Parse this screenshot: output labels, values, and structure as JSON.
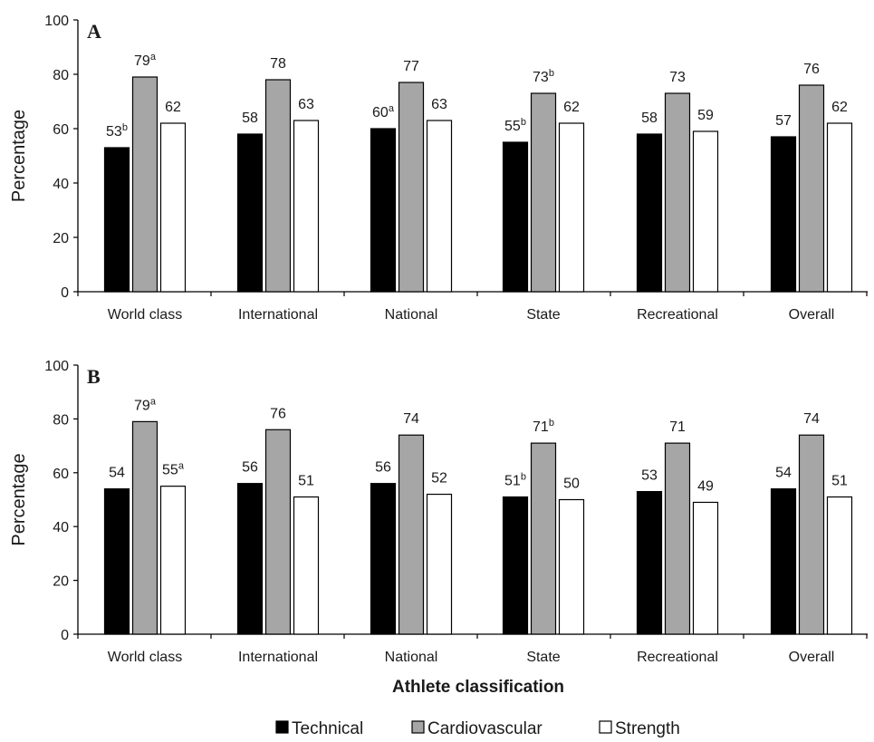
{
  "chart_data": {
    "type": "bar",
    "xlabel": "Athlete classification",
    "legend": {
      "placement": "bottom",
      "items": [
        {
          "name": "Technical",
          "color": "#000000"
        },
        {
          "name": "Cardiovascular",
          "color": "#a6a6a6"
        },
        {
          "name": "Strength",
          "color": "#ffffff"
        }
      ]
    },
    "panels": [
      {
        "letter": "A",
        "ylabel": "Percentage",
        "ylim": [
          0,
          100
        ],
        "yticks": [
          "0",
          "20",
          "40",
          "60",
          "80",
          "100"
        ],
        "categories": [
          "World class",
          "International",
          "National",
          "State",
          "Recreational",
          "Overall"
        ],
        "series": [
          {
            "name": "Technical",
            "values": [
              53,
              58,
              60,
              55,
              58,
              57
            ],
            "sup": [
              "b",
              "",
              "a",
              "b",
              "",
              ""
            ]
          },
          {
            "name": "Cardiovascular",
            "values": [
              79,
              78,
              77,
              73,
              73,
              76
            ],
            "sup": [
              "a",
              "",
              "",
              "b",
              "",
              ""
            ]
          },
          {
            "name": "Strength",
            "values": [
              62,
              63,
              63,
              62,
              59,
              62
            ],
            "sup": [
              "",
              "",
              "",
              "",
              "",
              ""
            ]
          }
        ]
      },
      {
        "letter": "B",
        "ylabel": "Percentage",
        "ylim": [
          0,
          100
        ],
        "yticks": [
          "0",
          "20",
          "40",
          "60",
          "80",
          "100"
        ],
        "categories": [
          "World class",
          "International",
          "National",
          "State",
          "Recreational",
          "Overall"
        ],
        "series": [
          {
            "name": "Technical",
            "values": [
              54,
              56,
              56,
              51,
              53,
              54
            ],
            "sup": [
              "",
              "",
              "",
              "b",
              "",
              ""
            ]
          },
          {
            "name": "Cardiovascular",
            "values": [
              79,
              76,
              74,
              71,
              71,
              74
            ],
            "sup": [
              "a",
              "",
              "",
              "b",
              "",
              ""
            ]
          },
          {
            "name": "Strength",
            "values": [
              55,
              51,
              52,
              50,
              49,
              51
            ],
            "sup": [
              "a",
              "",
              "",
              "",
              "",
              ""
            ]
          }
        ]
      }
    ]
  }
}
